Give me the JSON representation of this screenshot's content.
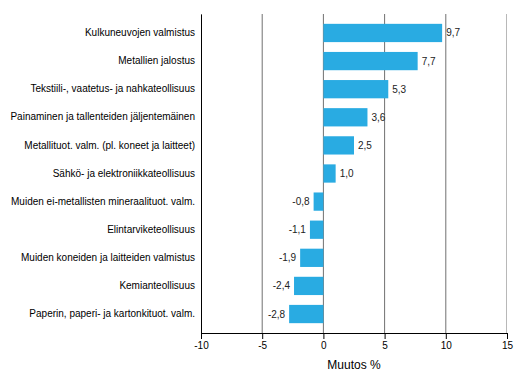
{
  "chart_data": {
    "type": "bar",
    "orientation": "horizontal",
    "categories": [
      "Paperin, paperi- ja kartonkituot. valm.",
      "Kemianteollisuus",
      "Muiden koneiden ja laitteiden valmistus",
      "Elintarviketeollisuus",
      "Muiden ei-metallisten mineraalituot. valm.",
      "Sähkö- ja elektroniikkateollisuus",
      "Metallituot. valm. (pl. koneet ja laitteet)",
      "Painaminen ja tallenteiden jäljentemäinen",
      "Tekstiili-, vaatetus- ja nahkateollisuus",
      "Metallien jalostus",
      "Kulkuneuvojen valmistus"
    ],
    "values": [
      -2.8,
      -2.4,
      -1.9,
      -1.1,
      -0.8,
      1.0,
      2.5,
      3.6,
      5.3,
      7.7,
      9.7
    ],
    "value_labels": [
      "-2,8",
      "-2,4",
      "-1,9",
      "-1,1",
      "-0,8",
      "1,0",
      "2,5",
      "3,6",
      "5,3",
      "7,7",
      "9,7"
    ],
    "data_labels": true,
    "color": "#29abe2",
    "xlim": [
      -10,
      15
    ],
    "xticks": [
      -10,
      -5,
      0,
      5,
      10,
      15
    ],
    "xlabel": "Muutos %",
    "grid": true
  }
}
